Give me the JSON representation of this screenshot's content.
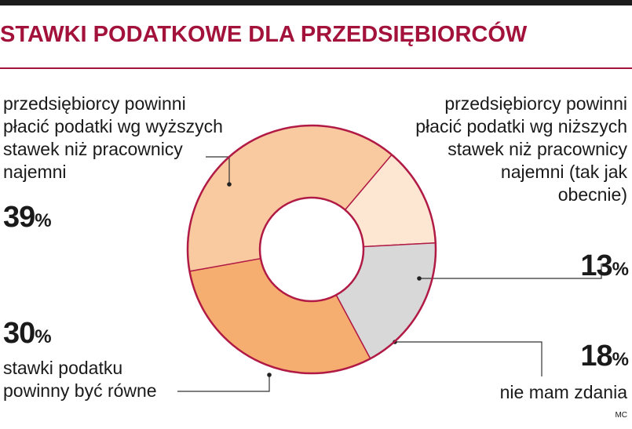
{
  "title": "STAWKI PODATKOWE DLA PRZEDSIĘBIORCÓW",
  "credit": "MC",
  "colors": {
    "accent": "#a3123a",
    "outline": "#b01a45"
  },
  "chart_data": {
    "type": "pie",
    "donut": true,
    "title": "STAWKI PODATKOWE DLA PRZEDSIĘBIORCÓW",
    "slices": [
      {
        "label_lines": [
          "przedsiębiorcy powinni",
          "płacić podatki wg wyższych",
          "stawek niż pracownicy",
          "najemni"
        ],
        "value": 39,
        "value_text": "39",
        "unit": "%",
        "color": "#f9c9a0"
      },
      {
        "label_lines": [
          "przedsiębiorcy powinni",
          "płacić podatki wg niższych",
          "stawek niż pracownicy",
          "najemni (tak jak",
          "obecnie)"
        ],
        "value": 13,
        "value_text": "13",
        "unit": "%",
        "color": "#fde6d2"
      },
      {
        "label_lines": [
          "nie mam zdania"
        ],
        "value": 18,
        "value_text": "18",
        "unit": "%",
        "color": "#d8d8d8"
      },
      {
        "label_lines": [
          "stawki podatku",
          "powinny być równe"
        ],
        "value": 30,
        "value_text": "30",
        "unit": "%",
        "color": "#f6ad70"
      }
    ]
  }
}
